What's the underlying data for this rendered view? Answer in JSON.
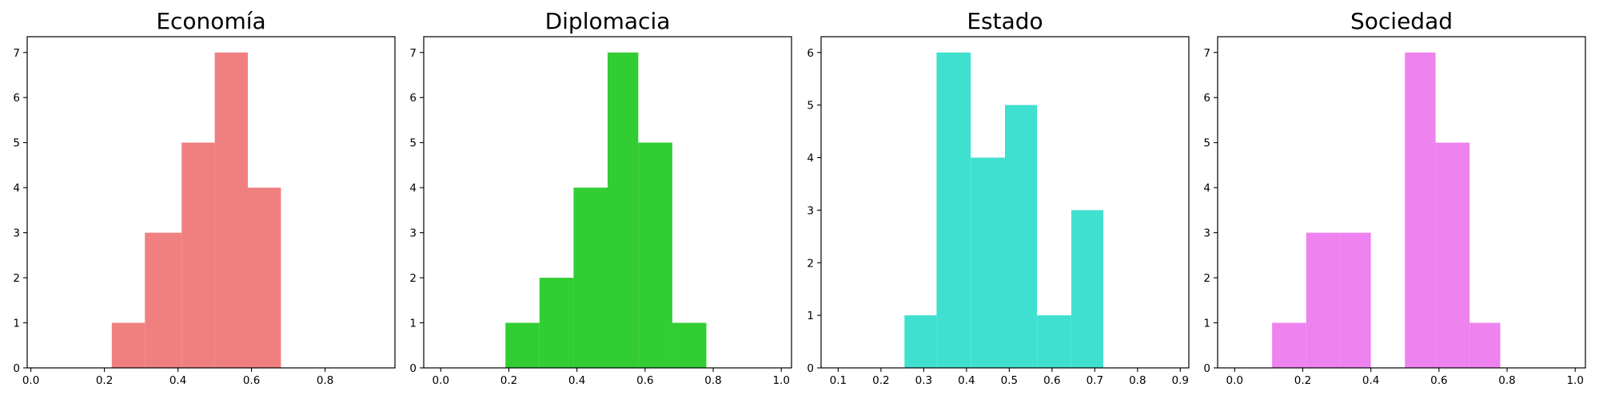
{
  "chart_data": [
    {
      "type": "bar",
      "title": "Economía",
      "color": "#f08080",
      "xlim": [
        -0.01,
        0.99
      ],
      "ylim": [
        0,
        7.35
      ],
      "xticks": [
        0.0,
        0.2,
        0.4,
        0.6,
        0.8
      ],
      "xtick_labels": [
        "0.0",
        "0.2",
        "0.4",
        "0.6",
        "0.8"
      ],
      "yticks": [
        0,
        1,
        2,
        3,
        4,
        5,
        6,
        7
      ],
      "ytick_labels": [
        "0",
        "1",
        "2",
        "3",
        "4",
        "5",
        "6",
        "7"
      ],
      "bins": [
        {
          "x0": 0.22,
          "x1": 0.31,
          "count": 1
        },
        {
          "x0": 0.31,
          "x1": 0.41,
          "count": 3
        },
        {
          "x0": 0.41,
          "x1": 0.5,
          "count": 5
        },
        {
          "x0": 0.5,
          "x1": 0.59,
          "count": 7
        },
        {
          "x0": 0.59,
          "x1": 0.68,
          "count": 4
        }
      ]
    },
    {
      "type": "bar",
      "title": "Diplomacia",
      "color": "#32cd32",
      "xlim": [
        -0.05,
        1.03
      ],
      "ylim": [
        0,
        7.35
      ],
      "xticks": [
        0.0,
        0.2,
        0.4,
        0.6,
        0.8,
        1.0
      ],
      "xtick_labels": [
        "0.0",
        "0.2",
        "0.4",
        "0.6",
        "0.8",
        "1.0"
      ],
      "yticks": [
        0,
        1,
        2,
        3,
        4,
        5,
        6,
        7
      ],
      "ytick_labels": [
        "0",
        "1",
        "2",
        "3",
        "4",
        "5",
        "6",
        "7"
      ],
      "bins": [
        {
          "x0": 0.19,
          "x1": 0.29,
          "count": 1
        },
        {
          "x0": 0.29,
          "x1": 0.39,
          "count": 2
        },
        {
          "x0": 0.39,
          "x1": 0.49,
          "count": 4
        },
        {
          "x0": 0.49,
          "x1": 0.58,
          "count": 7
        },
        {
          "x0": 0.58,
          "x1": 0.68,
          "count": 5
        },
        {
          "x0": 0.68,
          "x1": 0.78,
          "count": 1
        }
      ]
    },
    {
      "type": "bar",
      "title": "Estado",
      "color": "#40e0d0",
      "xlim": [
        0.06,
        0.92
      ],
      "ylim": [
        0,
        6.3
      ],
      "xticks": [
        0.1,
        0.2,
        0.3,
        0.4,
        0.5,
        0.6,
        0.7,
        0.8,
        0.9
      ],
      "xtick_labels": [
        "0.1",
        "0.2",
        "0.3",
        "0.4",
        "0.5",
        "0.6",
        "0.7",
        "0.8",
        "0.9"
      ],
      "yticks": [
        0,
        1,
        2,
        3,
        4,
        5,
        6
      ],
      "ytick_labels": [
        "0",
        "1",
        "2",
        "3",
        "4",
        "5",
        "6"
      ],
      "bins": [
        {
          "x0": 0.255,
          "x1": 0.33,
          "count": 1
        },
        {
          "x0": 0.33,
          "x1": 0.41,
          "count": 6
        },
        {
          "x0": 0.41,
          "x1": 0.49,
          "count": 4
        },
        {
          "x0": 0.49,
          "x1": 0.565,
          "count": 5
        },
        {
          "x0": 0.565,
          "x1": 0.645,
          "count": 1
        },
        {
          "x0": 0.645,
          "x1": 0.72,
          "count": 3
        }
      ]
    },
    {
      "type": "bar",
      "title": "Sociedad",
      "color": "#ee82ee",
      "xlim": [
        -0.05,
        1.03
      ],
      "ylim": [
        0,
        7.35
      ],
      "xticks": [
        0.0,
        0.2,
        0.4,
        0.6,
        0.8,
        1.0
      ],
      "xtick_labels": [
        "0.0",
        "0.2",
        "0.4",
        "0.6",
        "0.8",
        "1.0"
      ],
      "yticks": [
        0,
        1,
        2,
        3,
        4,
        5,
        6,
        7
      ],
      "ytick_labels": [
        "0",
        "1",
        "2",
        "3",
        "4",
        "5",
        "6",
        "7"
      ],
      "bins": [
        {
          "x0": 0.11,
          "x1": 0.21,
          "count": 1
        },
        {
          "x0": 0.21,
          "x1": 0.31,
          "count": 3
        },
        {
          "x0": 0.31,
          "x1": 0.4,
          "count": 3
        },
        {
          "x0": 0.4,
          "x1": 0.5,
          "count": 0
        },
        {
          "x0": 0.5,
          "x1": 0.59,
          "count": 7
        },
        {
          "x0": 0.59,
          "x1": 0.69,
          "count": 5
        },
        {
          "x0": 0.69,
          "x1": 0.78,
          "count": 1
        }
      ]
    }
  ]
}
